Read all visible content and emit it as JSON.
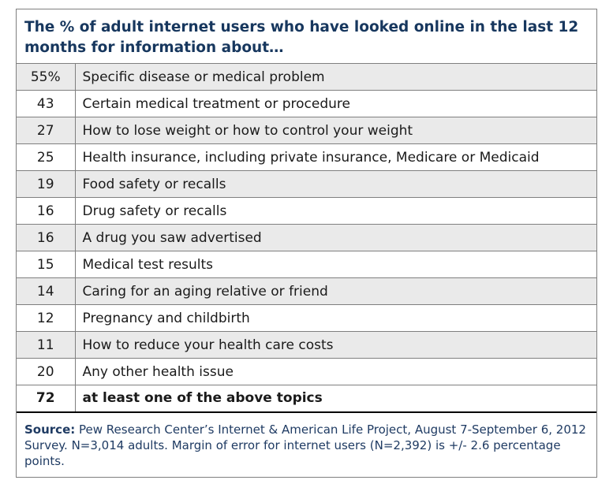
{
  "chart_data": {
    "type": "table",
    "title": "The % of adult internet users who have looked online in the last 12 months for information about…",
    "rows": [
      {
        "value": "55%",
        "label": "Specific disease or medical problem"
      },
      {
        "value": "43",
        "label": "Certain medical treatment or procedure"
      },
      {
        "value": "27",
        "label": "How to lose weight or how to control your weight"
      },
      {
        "value": "25",
        "label": "Health insurance, including private insurance, Medicare or Medicaid"
      },
      {
        "value": "19",
        "label": "Food safety or recalls"
      },
      {
        "value": "16",
        "label": "Drug safety or recalls"
      },
      {
        "value": "16",
        "label": "A drug you saw advertised"
      },
      {
        "value": "15",
        "label": "Medical test results"
      },
      {
        "value": "14",
        "label": "Caring for an aging relative or friend"
      },
      {
        "value": "12",
        "label": "Pregnancy and childbirth"
      },
      {
        "value": "11",
        "label": "How to reduce your health care costs"
      },
      {
        "value": "20",
        "label": "Any other health issue"
      }
    ],
    "total": {
      "value": "72",
      "label": "at least one of the above topics"
    },
    "source_label": "Source:",
    "source_text": "Pew Research Center’s Internet & American Life Project, August 7-September 6, 2012 Survey. N=3,014 adults.  Margin of error for internet users (N=2,392) is +/- 2.6 percentage points."
  },
  "colors": {
    "title": "#17375e",
    "row_shade": "#eaeaea",
    "source": "#1f3b63",
    "border": "#7f7f7f"
  }
}
